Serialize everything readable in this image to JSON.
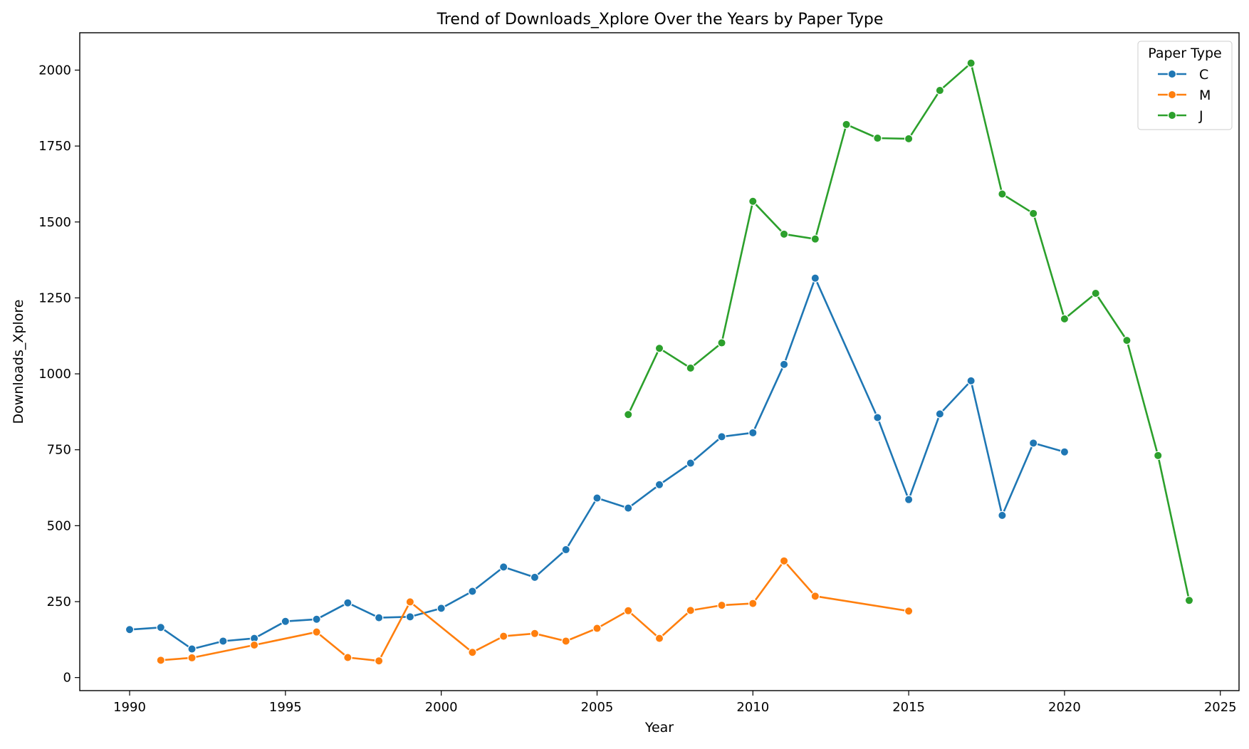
{
  "chart_data": {
    "type": "line",
    "title": "Trend of Downloads_Xplore Over the Years by Paper Type",
    "xlabel": "Year",
    "ylabel": "Downloads_Xplore",
    "xlim": [
      1988.4,
      2025.6
    ],
    "ylim": [
      -43,
      2123
    ],
    "xticks": [
      1990,
      1995,
      2000,
      2005,
      2010,
      2015,
      2020,
      2025
    ],
    "yticks": [
      0,
      250,
      500,
      750,
      1000,
      1250,
      1500,
      1750,
      2000
    ],
    "grid": false,
    "legend": {
      "title": "Paper Type",
      "placement": "top-right"
    },
    "series": [
      {
        "name": "C",
        "color": "#1f77b4",
        "x": [
          1990,
          1991,
          1992,
          1993,
          1994,
          1995,
          1996,
          1997,
          1998,
          1999,
          2000,
          2001,
          2002,
          2003,
          2004,
          2005,
          2006,
          2007,
          2008,
          2009,
          2010,
          2011,
          2012,
          2014,
          2015,
          2016,
          2017,
          2018,
          2019,
          2020
        ],
        "y": [
          158,
          165,
          94,
          120,
          129,
          185,
          192,
          246,
          197,
          200,
          228,
          284,
          364,
          330,
          421,
          591,
          558,
          635,
          706,
          793,
          806,
          1031,
          1315,
          856,
          586,
          868,
          977,
          534,
          772,
          743
        ]
      },
      {
        "name": "M",
        "color": "#ff7f0e",
        "x": [
          1991,
          1992,
          1994,
          1996,
          1997,
          1998,
          1999,
          2001,
          2002,
          2003,
          2004,
          2005,
          2006,
          2007,
          2008,
          2009,
          2010,
          2011,
          2012,
          2015
        ],
        "y": [
          57,
          65,
          107,
          150,
          66,
          55,
          249,
          83,
          136,
          145,
          120,
          162,
          220,
          129,
          221,
          238,
          244,
          384,
          268,
          219
        ]
      },
      {
        "name": "J",
        "color": "#2ca02c",
        "x": [
          2006,
          2007,
          2008,
          2009,
          2010,
          2011,
          2012,
          2013,
          2014,
          2015,
          2016,
          2017,
          2018,
          2019,
          2020,
          2021,
          2022,
          2023,
          2024
        ],
        "y": [
          866,
          1084,
          1019,
          1102,
          1568,
          1460,
          1444,
          1821,
          1776,
          1774,
          1933,
          2023,
          1592,
          1528,
          1181,
          1265,
          1110,
          731,
          254
        ]
      }
    ]
  }
}
